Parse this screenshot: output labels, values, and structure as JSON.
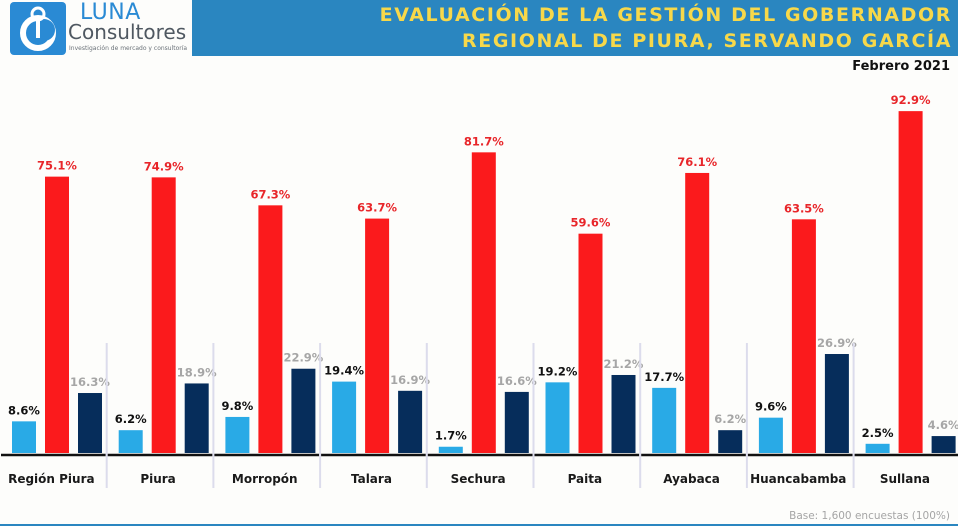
{
  "logo": {
    "name": "LUNA",
    "sub": "Consultores",
    "tagline": "Investigación de mercado y consultoría"
  },
  "header": {
    "title_line1": "EVALUACIÓN DE LA GESTIÓN DEL GOBERNADOR",
    "title_line2": "REGIONAL DE PIURA, SERVANDO GARCÍA",
    "date": "Febrero 2021"
  },
  "footer": {
    "base": "Base: 1,600 encuestas (100%)"
  },
  "colors": {
    "banner": "#2a86c0",
    "title": "#f7d84a",
    "approve": "#29aae6",
    "disapprove": "#fb1a1c",
    "no_answer": "#062d5b",
    "label_approve": "#111111",
    "label_disapprove": "#e8262a",
    "label_no_answer": "#a6a6a6"
  },
  "chart_data": {
    "type": "bar",
    "title": "EVALUACIÓN DE LA GESTIÓN DEL GOBERNADOR REGIONAL DE PIURA, SERVANDO GARCÍA",
    "subtitle": "Febrero 2021",
    "xlabel": "",
    "ylabel": "",
    "ylim": [
      0,
      100
    ],
    "grid": false,
    "legend": "none",
    "categories": [
      "Región Piura",
      "Piura",
      "Morropón",
      "Talara",
      "Sechura",
      "Paita",
      "Ayabaca",
      "Huancabamba",
      "Sullana"
    ],
    "series": [
      {
        "name": "series-light-blue",
        "values": [
          8.6,
          6.2,
          9.8,
          19.4,
          1.7,
          19.2,
          17.7,
          9.6,
          2.5
        ],
        "labels": [
          "8.6%",
          "6.2%",
          "9.8%",
          "19.4%",
          "1.7%",
          "19.2%",
          "17.7%",
          "9.6%",
          "2.5%"
        ]
      },
      {
        "name": "series-red",
        "values": [
          75.1,
          74.9,
          67.3,
          63.7,
          81.7,
          59.6,
          76.1,
          63.5,
          92.9
        ],
        "labels": [
          "75.1%",
          "74.9%",
          "67.3%",
          "63.7%",
          "81.7%",
          "59.6%",
          "76.1%",
          "63.5%",
          "92.9%"
        ]
      },
      {
        "name": "series-navy",
        "values": [
          16.3,
          18.9,
          22.9,
          16.9,
          16.6,
          21.2,
          6.2,
          26.9,
          4.6
        ],
        "labels": [
          "16.3%",
          "18.9%",
          "22.9%",
          "16.9%",
          "16.6%",
          "21.2%",
          "6.2%",
          "26.9%",
          "4.6%"
        ]
      }
    ],
    "annotations": [
      "Base: 1,600 encuestas (100%)"
    ]
  }
}
